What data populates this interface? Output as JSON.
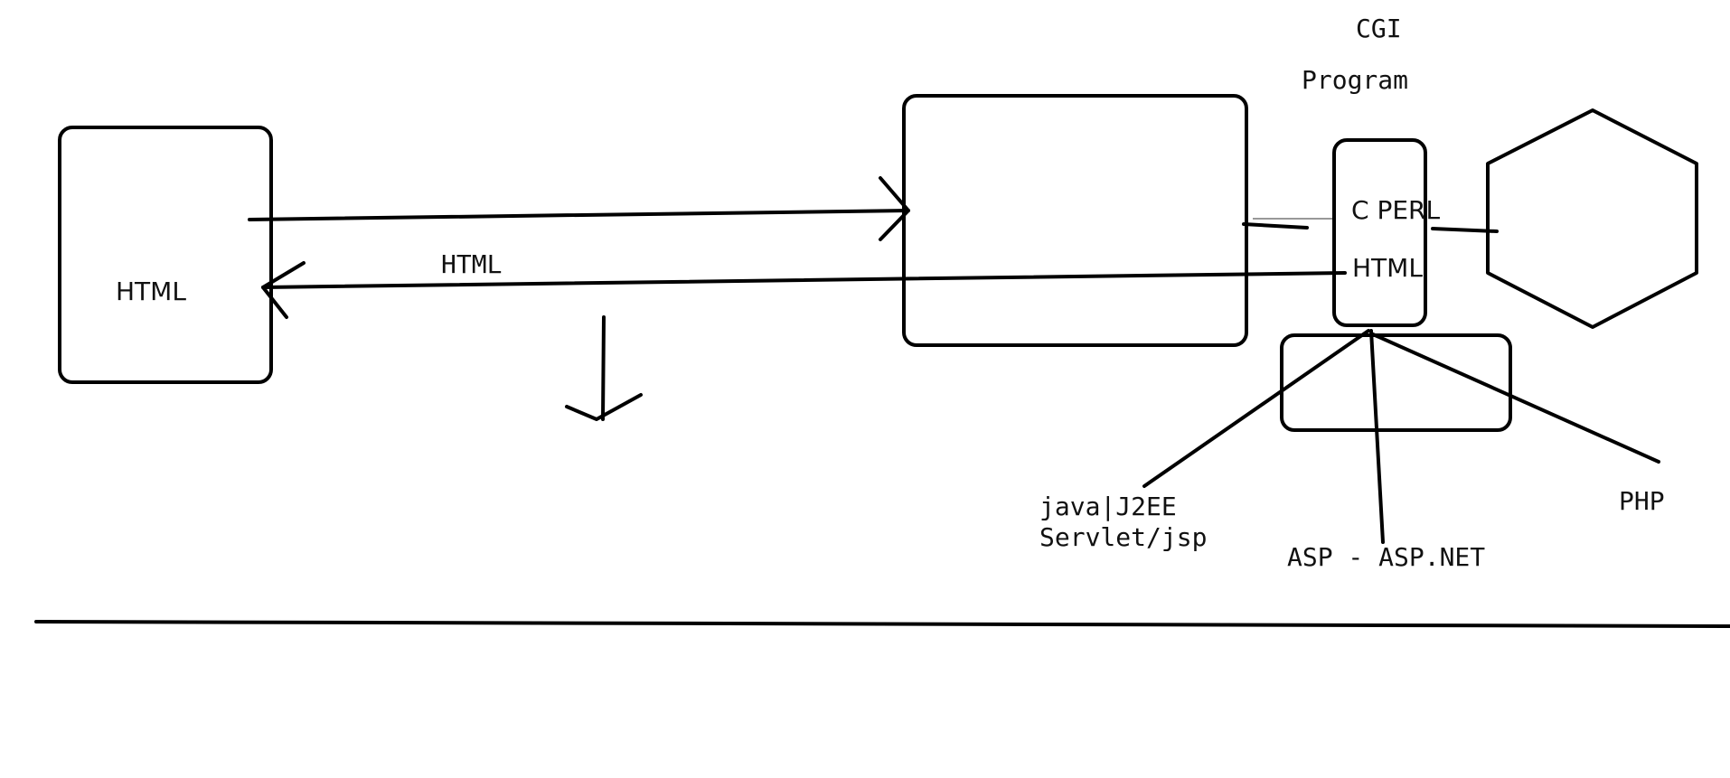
{
  "diagram": {
    "labels": {
      "client_html": "HTML",
      "response_html": "HTML",
      "cgi": "CGI",
      "program": "Program",
      "c_perl": "C PERL",
      "program_html": "HTML",
      "java_j2ee": "java|J2EE",
      "servlet_jsp": "Servlet/jsp",
      "asp": "ASP - ASP.NET",
      "php": "PHP"
    }
  }
}
